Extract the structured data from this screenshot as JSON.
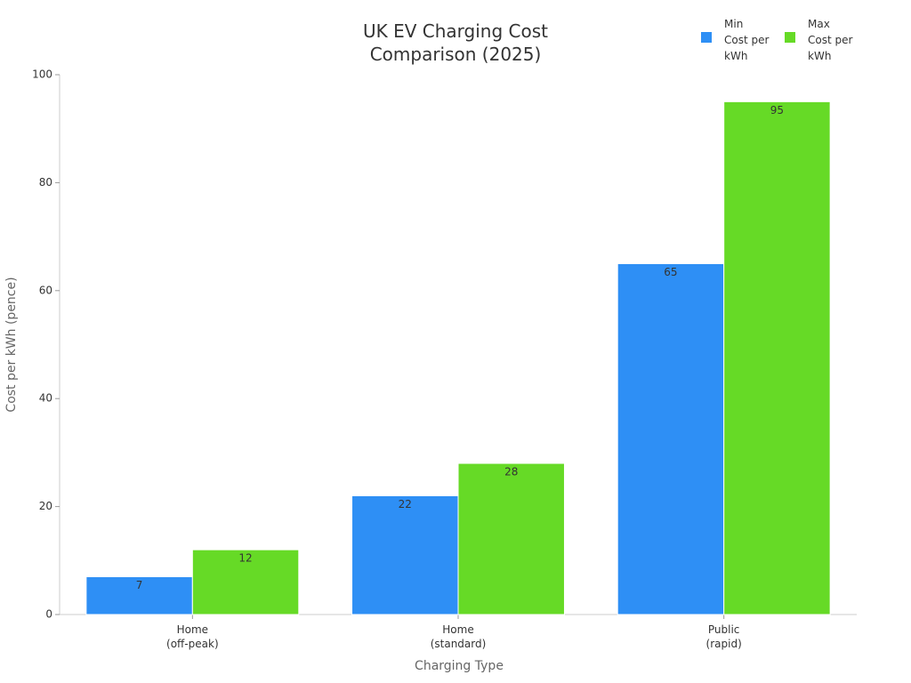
{
  "chart_data": {
    "type": "bar",
    "title": "UK EV Charging Cost\nComparison (2025)",
    "x_label": "Charging Type",
    "y_label": "Cost per kWh (pence)",
    "categories": [
      "Home\n(off-peak)",
      "Home\n(standard)",
      "Public\n(rapid)"
    ],
    "series": [
      {
        "name": "Min\nCost per\nkWh",
        "color": "#2e8ff5",
        "values": [
          7,
          22,
          65
        ]
      },
      {
        "name": "Max\nCost per\nkWh",
        "color": "#66da26",
        "values": [
          12,
          28,
          95
        ]
      }
    ],
    "ylim": [
      0,
      100
    ],
    "yticks": [
      0,
      20,
      40,
      60,
      80,
      100
    ],
    "grid": false,
    "legend": "top-right"
  }
}
